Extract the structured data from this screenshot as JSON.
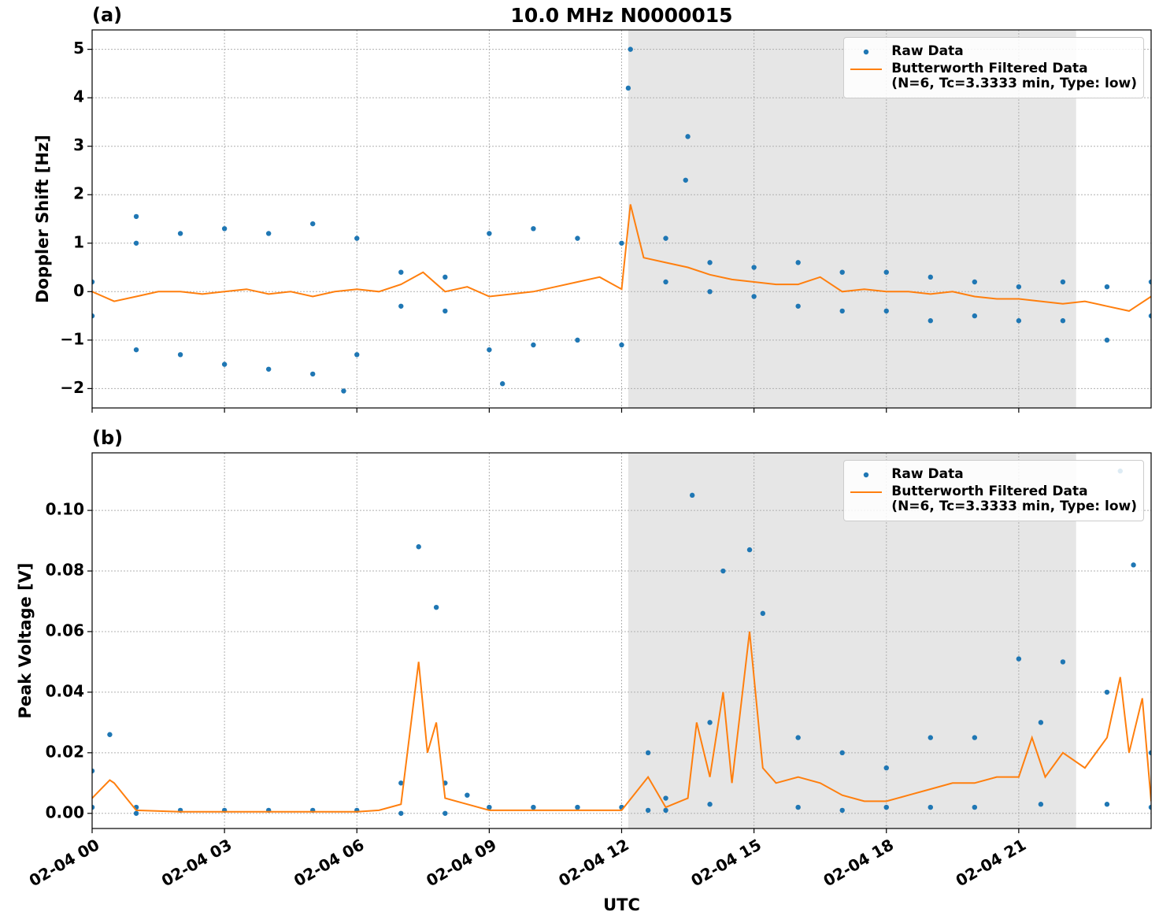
{
  "chart_data": [
    {
      "type": "scatter-line",
      "title": "10.0 MHz N0000015",
      "panel_label": "(a)",
      "y_label": "Doppler Shift [Hz]",
      "xlim": [
        0,
        24
      ],
      "ylim": [
        -2.4,
        5.4
      ],
      "grid": true,
      "legend": "upper right",
      "shaded_span": [
        12.15,
        22.3
      ],
      "yticks": [
        {
          "value": -2,
          "label": "−2"
        },
        {
          "value": -1,
          "label": "−1"
        },
        0,
        1,
        2,
        3,
        4,
        5
      ],
      "series": [
        {
          "name": "Raw Data",
          "type": "scatter",
          "color": "#1f77b4",
          "x": [
            0,
            0,
            1,
            1,
            2,
            2,
            3,
            3,
            4,
            4,
            5,
            5,
            6,
            6,
            7,
            7,
            8,
            8,
            9,
            9,
            10,
            10,
            11,
            11,
            12,
            12,
            13,
            13,
            14,
            14,
            15,
            15,
            16,
            16,
            17,
            17,
            18,
            18,
            19,
            19,
            20,
            20,
            21,
            21,
            22,
            22,
            23,
            23,
            24,
            24,
            12.2,
            12.15,
            13.5,
            13.45,
            5.7,
            9.3,
            1.0
          ],
          "values": [
            0.2,
            -0.5,
            1.0,
            -1.2,
            1.2,
            -1.3,
            1.3,
            -1.5,
            1.2,
            -1.6,
            1.4,
            -1.7,
            1.1,
            -1.3,
            0.4,
            -0.3,
            0.3,
            -0.4,
            1.2,
            -1.2,
            1.3,
            -1.1,
            1.1,
            -1.0,
            1.0,
            -1.1,
            1.1,
            0.2,
            0.6,
            0.0,
            0.5,
            -0.1,
            0.6,
            -0.3,
            0.4,
            -0.4,
            0.4,
            -0.4,
            0.3,
            -0.6,
            0.2,
            -0.5,
            0.1,
            -0.6,
            0.2,
            -0.6,
            0.1,
            -1.0,
            0.2,
            -0.5,
            5.0,
            4.2,
            3.2,
            2.3,
            -2.05,
            -1.9,
            1.55
          ]
        },
        {
          "name": "Butterworth Filtered Data\n(N=6, Tc=3.3333 min, Type: low)",
          "type": "line",
          "color": "#ff7f0e",
          "x": [
            0,
            0.5,
            1,
            1.5,
            2,
            2.5,
            3,
            3.5,
            4,
            4.5,
            5,
            5.5,
            6,
            6.5,
            7,
            7.5,
            8,
            8.5,
            9,
            9.5,
            10,
            10.5,
            11,
            11.5,
            12,
            12.2,
            12.5,
            13,
            13.5,
            14,
            14.5,
            15,
            15.5,
            16,
            16.5,
            17,
            17.5,
            18,
            18.5,
            19,
            19.5,
            20,
            20.5,
            21,
            21.5,
            22,
            22.5,
            23,
            23.5,
            24
          ],
          "values": [
            0.0,
            -0.2,
            -0.1,
            0.0,
            0.0,
            -0.05,
            0.0,
            0.05,
            -0.05,
            0.0,
            -0.1,
            0.0,
            0.05,
            0.0,
            0.15,
            0.4,
            0.0,
            0.1,
            -0.1,
            -0.05,
            0.0,
            0.1,
            0.2,
            0.3,
            0.05,
            1.8,
            0.7,
            0.6,
            0.5,
            0.35,
            0.25,
            0.2,
            0.15,
            0.15,
            0.3,
            0.0,
            0.05,
            0.0,
            0.0,
            -0.05,
            0.0,
            -0.1,
            -0.15,
            -0.15,
            -0.2,
            -0.25,
            -0.2,
            -0.3,
            -0.4,
            -0.1
          ]
        }
      ]
    },
    {
      "type": "scatter-line",
      "panel_label": "(b)",
      "y_label": "Peak Voltage [V]",
      "x_label": "UTC",
      "xlim": [
        0,
        24
      ],
      "ylim": [
        -0.005,
        0.119
      ],
      "grid": true,
      "legend": "upper right",
      "shaded_span": [
        12.15,
        22.3
      ],
      "xticks": [
        {
          "value": 0,
          "label": "02-04 00"
        },
        {
          "value": 3,
          "label": "02-04 03"
        },
        {
          "value": 6,
          "label": "02-04 06"
        },
        {
          "value": 9,
          "label": "02-04 09"
        },
        {
          "value": 12,
          "label": "02-04 12"
        },
        {
          "value": 15,
          "label": "02-04 15"
        },
        {
          "value": 18,
          "label": "02-04 18"
        },
        {
          "value": 21,
          "label": "02-04 21"
        }
      ],
      "yticks": [
        {
          "value": 0,
          "label": "0.00"
        },
        {
          "value": 0.02,
          "label": "0.02"
        },
        {
          "value": 0.04,
          "label": "0.04"
        },
        {
          "value": 0.06,
          "label": "0.06"
        },
        {
          "value": 0.08,
          "label": "0.08"
        },
        {
          "value": 0.1,
          "label": "0.10"
        }
      ],
      "series": [
        {
          "name": "Raw Data",
          "type": "scatter",
          "color": "#1f77b4",
          "x": [
            0,
            0,
            0.4,
            1,
            1,
            2,
            3,
            4,
            5,
            6,
            7,
            7,
            7.4,
            7.8,
            8,
            8,
            8.5,
            9,
            10,
            11,
            12,
            12.6,
            12.6,
            13,
            13,
            13.6,
            14,
            14,
            14.3,
            14.9,
            15.2,
            16,
            16,
            17,
            17,
            18,
            18,
            19,
            19,
            20,
            20,
            21,
            21.5,
            21.5,
            22,
            23,
            23,
            23.3,
            23.6,
            24,
            24
          ],
          "values": [
            0.014,
            0.002,
            0.026,
            0.002,
            0.0,
            0.001,
            0.001,
            0.001,
            0.001,
            0.001,
            0.01,
            0.0,
            0.088,
            0.068,
            0.01,
            0.0,
            0.006,
            0.002,
            0.002,
            0.002,
            0.002,
            0.02,
            0.001,
            0.005,
            0.001,
            0.105,
            0.03,
            0.003,
            0.08,
            0.087,
            0.066,
            0.025,
            0.002,
            0.02,
            0.001,
            0.015,
            0.002,
            0.025,
            0.002,
            0.025,
            0.002,
            0.051,
            0.03,
            0.003,
            0.05,
            0.04,
            0.003,
            0.113,
            0.082,
            0.02,
            0.002
          ]
        },
        {
          "name": "Butterworth Filtered Data\n(N=6, Tc=3.3333 min, Type: low)",
          "type": "line",
          "color": "#ff7f0e",
          "x": [
            0,
            0.4,
            0.5,
            1,
            2,
            3,
            4,
            5,
            6,
            6.5,
            7,
            7.4,
            7.6,
            7.8,
            8,
            8.5,
            9,
            10,
            11,
            12,
            12.6,
            13,
            13.5,
            13.7,
            14,
            14.3,
            14.5,
            14.9,
            15.2,
            15.5,
            16,
            16.5,
            17,
            17.5,
            18,
            18.5,
            19,
            19.5,
            20,
            20.5,
            21,
            21.3,
            21.6,
            22,
            22.5,
            23,
            23.3,
            23.5,
            23.8,
            24
          ],
          "values": [
            0.005,
            0.011,
            0.01,
            0.001,
            0.0005,
            0.0005,
            0.0005,
            0.0005,
            0.0005,
            0.001,
            0.003,
            0.05,
            0.02,
            0.03,
            0.005,
            0.003,
            0.001,
            0.001,
            0.001,
            0.001,
            0.012,
            0.002,
            0.005,
            0.03,
            0.012,
            0.04,
            0.01,
            0.06,
            0.015,
            0.01,
            0.012,
            0.01,
            0.006,
            0.004,
            0.004,
            0.006,
            0.008,
            0.01,
            0.01,
            0.012,
            0.012,
            0.025,
            0.012,
            0.02,
            0.015,
            0.025,
            0.045,
            0.02,
            0.038,
            0.004
          ]
        }
      ]
    }
  ]
}
